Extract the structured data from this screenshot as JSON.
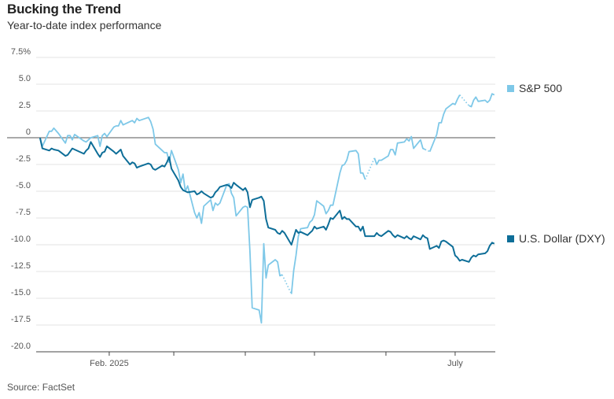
{
  "title": "Bucking the Trend",
  "subtitle": "Year-to-date index performance",
  "source": "Source: FactSet",
  "chart_data": {
    "type": "line",
    "ylim": [
      -20,
      7.5
    ],
    "y_ticks": [
      "7.5%",
      "5.0",
      "2.5",
      "0",
      "-2.5",
      "-5.0",
      "-7.5",
      "-10.0",
      "-12.5",
      "-15.0",
      "-17.5",
      "-20.0"
    ],
    "y_tick_values": [
      7.5,
      5,
      2.5,
      0,
      -2.5,
      -5,
      -7.5,
      -10,
      -12.5,
      -15,
      -17.5,
      -20
    ],
    "x_range": [
      "2025-01-01",
      "2025-07-15"
    ],
    "x_labels": [
      {
        "date": "2025-02-01",
        "label": "Feb. 2025"
      },
      {
        "date": "2025-07-01",
        "label": "July"
      }
    ],
    "x_ticks": [
      "2025-02-01",
      "2025-03-01",
      "2025-04-01",
      "2025-05-01",
      "2025-06-01",
      "2025-07-01"
    ],
    "grid": true,
    "series": [
      {
        "name": "S&P 500",
        "color": "#7ec8e8",
        "points": [
          [
            "2025-01-02",
            0.0
          ],
          [
            "2025-01-03",
            -0.8
          ],
          [
            "2025-01-06",
            0.6
          ],
          [
            "2025-01-07",
            0.6
          ],
          [
            "2025-01-08",
            0.9
          ],
          [
            "2025-01-10",
            0.4
          ],
          [
            "2025-01-13",
            -0.5
          ],
          [
            "2025-01-14",
            0.2
          ],
          [
            "2025-01-15",
            0.2
          ],
          [
            "2025-01-16",
            -0.2
          ],
          [
            "2025-01-17",
            0.3
          ],
          [
            "2025-01-21",
            -0.3
          ],
          [
            "2025-01-22",
            -0.4
          ],
          [
            "2025-01-23",
            -0.2
          ],
          [
            "2025-01-24",
            0.0
          ],
          [
            "2025-01-27",
            0.2
          ],
          [
            "2025-01-28",
            -0.8
          ],
          [
            "2025-01-29",
            0.2
          ],
          [
            "2025-01-30",
            0.4
          ],
          [
            "2025-01-31",
            0.1
          ],
          [
            "2025-02-03",
            1.0
          ],
          [
            "2025-02-04",
            1.1
          ],
          [
            "2025-02-05",
            1.1
          ],
          [
            "2025-02-06",
            1.6
          ],
          [
            "2025-02-07",
            1.2
          ],
          [
            "2025-02-10",
            1.5
          ],
          [
            "2025-02-11",
            1.6
          ],
          [
            "2025-02-12",
            1.4
          ],
          [
            "2025-02-13",
            1.8
          ],
          [
            "2025-02-14",
            1.6
          ],
          [
            "2025-02-18",
            1.9
          ],
          [
            "2025-02-19",
            1.5
          ],
          [
            "2025-02-20",
            0.8
          ],
          [
            "2025-02-21",
            -0.6
          ],
          [
            "2025-02-24",
            -1.2
          ],
          [
            "2025-02-25",
            -1.4
          ],
          [
            "2025-02-26",
            -1.4
          ],
          [
            "2025-02-27",
            -2.3
          ],
          [
            "2025-02-28",
            -1.2
          ],
          [
            "2025-03-03",
            -3.0
          ],
          [
            "2025-03-04",
            -4.2
          ],
          [
            "2025-03-05",
            -3.4
          ],
          [
            "2025-03-06",
            -5.0
          ],
          [
            "2025-03-07",
            -4.5
          ],
          [
            "2025-03-10",
            -7.0
          ],
          [
            "2025-03-11",
            -7.5
          ],
          [
            "2025-03-12",
            -7.0
          ],
          [
            "2025-03-13",
            -8.0
          ],
          [
            "2025-03-14",
            -6.4
          ],
          [
            "2025-03-17",
            -5.8
          ],
          [
            "2025-03-18",
            -6.8
          ],
          [
            "2025-03-19",
            -6.1
          ],
          [
            "2025-03-20",
            -6.3
          ],
          [
            "2025-03-21",
            -6.1
          ],
          [
            "2025-03-24",
            -4.4
          ],
          [
            "2025-03-25",
            -4.3
          ],
          [
            "2025-03-26",
            -5.2
          ],
          [
            "2025-03-27",
            -5.6
          ],
          [
            "2025-03-28",
            -7.3
          ],
          [
            "2025-03-31",
            -6.5
          ],
          [
            "2025-04-01",
            -6.4
          ],
          [
            "2025-04-02",
            -6.5
          ],
          [
            "2025-04-03",
            -10.6
          ],
          [
            "2025-04-04",
            -15.9
          ],
          [
            "2025-04-07",
            -16.1
          ],
          [
            "2025-04-08",
            -17.3
          ],
          [
            "2025-04-09",
            -9.9
          ],
          [
            "2025-04-10",
            -13.1
          ],
          [
            "2025-04-11",
            -11.9
          ],
          [
            "2025-04-14",
            -11.4
          ],
          [
            "2025-04-15",
            -11.6
          ],
          [
            "2025-04-16",
            -12.9
          ],
          [
            "2025-04-17",
            -12.8
          ],
          [
            "2025-04-18",
            null
          ],
          [
            "2025-04-21",
            -14.6
          ],
          [
            "2025-04-22",
            -12.4
          ],
          [
            "2025-04-23",
            -11.0
          ],
          [
            "2025-04-24",
            -9.2
          ],
          [
            "2025-04-25",
            -8.5
          ],
          [
            "2025-04-28",
            -8.4
          ],
          [
            "2025-04-29",
            -7.9
          ],
          [
            "2025-04-30",
            -7.7
          ],
          [
            "2025-05-01",
            -7.2
          ],
          [
            "2025-05-02",
            -5.9
          ],
          [
            "2025-05-05",
            -6.4
          ],
          [
            "2025-05-06",
            -7.1
          ],
          [
            "2025-05-07",
            -6.8
          ],
          [
            "2025-05-08",
            -6.3
          ],
          [
            "2025-05-09",
            -6.3
          ],
          [
            "2025-05-12",
            -3.3
          ],
          [
            "2025-05-13",
            -2.6
          ],
          [
            "2025-05-14",
            -2.5
          ],
          [
            "2025-05-15",
            -2.1
          ],
          [
            "2025-05-16",
            -1.3
          ],
          [
            "2025-05-19",
            -1.2
          ],
          [
            "2025-05-20",
            -1.5
          ],
          [
            "2025-05-21",
            -3.3
          ],
          [
            "2025-05-22",
            -3.3
          ],
          [
            "2025-05-23",
            -3.9
          ],
          [
            "2025-05-26",
            null
          ],
          [
            "2025-05-27",
            -1.9
          ],
          [
            "2025-05-28",
            -2.5
          ],
          [
            "2025-05-29",
            -2.1
          ],
          [
            "2025-05-30",
            -2.1
          ],
          [
            "2025-06-02",
            -1.7
          ],
          [
            "2025-06-03",
            -1.1
          ],
          [
            "2025-06-04",
            -1.1
          ],
          [
            "2025-06-05",
            -1.6
          ],
          [
            "2025-06-06",
            -0.5
          ],
          [
            "2025-06-09",
            -0.4
          ],
          [
            "2025-06-10",
            -0.1
          ],
          [
            "2025-06-11",
            -0.3
          ],
          [
            "2025-06-12",
            0.1
          ],
          [
            "2025-06-13",
            -1.0
          ],
          [
            "2025-06-16",
            -0.2
          ],
          [
            "2025-06-17",
            -1.0
          ],
          [
            "2025-06-18",
            -1.1
          ],
          [
            "2025-06-19",
            null
          ],
          [
            "2025-06-20",
            -1.3
          ],
          [
            "2025-06-23",
            0.3
          ],
          [
            "2025-06-24",
            1.4
          ],
          [
            "2025-06-25",
            1.4
          ],
          [
            "2025-06-26",
            2.2
          ],
          [
            "2025-06-27",
            2.7
          ],
          [
            "2025-06-30",
            3.2
          ],
          [
            "2025-07-01",
            3.1
          ],
          [
            "2025-07-02",
            3.6
          ],
          [
            "2025-07-03",
            4.0
          ],
          [
            "2025-07-04",
            null
          ],
          [
            "2025-07-07",
            3.0
          ],
          [
            "2025-07-08",
            2.9
          ],
          [
            "2025-07-09",
            3.5
          ],
          [
            "2025-07-10",
            3.8
          ],
          [
            "2025-07-11",
            3.4
          ],
          [
            "2025-07-14",
            3.5
          ],
          [
            "2025-07-15",
            3.3
          ],
          [
            "2025-07-16",
            3.5
          ],
          [
            "2025-07-17",
            4.1
          ],
          [
            "2025-07-18",
            4.0
          ]
        ]
      },
      {
        "name": "U.S. Dollar (DXY)",
        "color": "#0e6e98",
        "points": [
          [
            "2025-01-02",
            0.0
          ],
          [
            "2025-01-03",
            -1.0
          ],
          [
            "2025-01-06",
            -1.2
          ],
          [
            "2025-01-07",
            -1.0
          ],
          [
            "2025-01-08",
            -1.1
          ],
          [
            "2025-01-10",
            -1.2
          ],
          [
            "2025-01-13",
            -1.7
          ],
          [
            "2025-01-14",
            -1.6
          ],
          [
            "2025-01-15",
            -1.3
          ],
          [
            "2025-01-16",
            -1.0
          ],
          [
            "2025-01-17",
            -1.1
          ],
          [
            "2025-01-21",
            -1.5
          ],
          [
            "2025-01-22",
            -1.2
          ],
          [
            "2025-01-23",
            -1.0
          ],
          [
            "2025-01-24",
            -0.4
          ],
          [
            "2025-01-27",
            -1.5
          ],
          [
            "2025-01-28",
            -1.8
          ],
          [
            "2025-01-29",
            -1.4
          ],
          [
            "2025-01-30",
            -1.3
          ],
          [
            "2025-01-31",
            -0.8
          ],
          [
            "2025-02-03",
            -1.3
          ],
          [
            "2025-02-04",
            -1.5
          ],
          [
            "2025-02-05",
            -1.3
          ],
          [
            "2025-02-06",
            -1.1
          ],
          [
            "2025-02-07",
            -1.7
          ],
          [
            "2025-02-10",
            -2.5
          ],
          [
            "2025-02-11",
            -2.3
          ],
          [
            "2025-02-12",
            -2.4
          ],
          [
            "2025-02-13",
            -2.8
          ],
          [
            "2025-02-14",
            -2.7
          ],
          [
            "2025-02-18",
            -2.4
          ],
          [
            "2025-02-19",
            -2.5
          ],
          [
            "2025-02-20",
            -2.9
          ],
          [
            "2025-02-21",
            -3.0
          ],
          [
            "2025-02-24",
            -2.6
          ],
          [
            "2025-02-25",
            -2.7
          ],
          [
            "2025-02-26",
            -2.3
          ],
          [
            "2025-02-27",
            -1.8
          ],
          [
            "2025-02-28",
            -2.9
          ],
          [
            "2025-03-03",
            -4.0
          ],
          [
            "2025-03-04",
            -4.6
          ],
          [
            "2025-03-05",
            -4.9
          ],
          [
            "2025-03-06",
            -5.0
          ],
          [
            "2025-03-07",
            -5.1
          ],
          [
            "2025-03-10",
            -5.0
          ],
          [
            "2025-03-11",
            -5.3
          ],
          [
            "2025-03-12",
            -5.2
          ],
          [
            "2025-03-13",
            -5.0
          ],
          [
            "2025-03-14",
            -5.2
          ],
          [
            "2025-03-17",
            -5.6
          ],
          [
            "2025-03-18",
            -5.5
          ],
          [
            "2025-03-19",
            -5.1
          ],
          [
            "2025-03-20",
            -4.9
          ],
          [
            "2025-03-21",
            -4.6
          ],
          [
            "2025-03-24",
            -4.4
          ],
          [
            "2025-03-25",
            -4.5
          ],
          [
            "2025-03-26",
            -4.7
          ],
          [
            "2025-03-27",
            -4.2
          ],
          [
            "2025-03-28",
            -4.4
          ],
          [
            "2025-03-31",
            -4.9
          ],
          [
            "2025-04-01",
            -4.7
          ],
          [
            "2025-04-02",
            -5.1
          ],
          [
            "2025-04-03",
            -6.5
          ],
          [
            "2025-04-04",
            -5.8
          ],
          [
            "2025-04-07",
            -5.6
          ],
          [
            "2025-04-08",
            -5.5
          ],
          [
            "2025-04-09",
            -5.9
          ],
          [
            "2025-04-10",
            -7.6
          ],
          [
            "2025-04-11",
            -8.4
          ],
          [
            "2025-04-14",
            -8.6
          ],
          [
            "2025-04-15",
            -8.9
          ],
          [
            "2025-04-16",
            -9.0
          ],
          [
            "2025-04-17",
            -8.7
          ],
          [
            "2025-04-18",
            -8.9
          ],
          [
            "2025-04-21",
            -10.0
          ],
          [
            "2025-04-22",
            -9.3
          ],
          [
            "2025-04-23",
            -8.6
          ],
          [
            "2025-04-24",
            -8.9
          ],
          [
            "2025-04-25",
            -8.8
          ],
          [
            "2025-04-28",
            -9.1
          ],
          [
            "2025-04-29",
            -8.9
          ],
          [
            "2025-04-30",
            -8.7
          ],
          [
            "2025-05-01",
            -8.3
          ],
          [
            "2025-05-02",
            -8.5
          ],
          [
            "2025-05-05",
            -8.3
          ],
          [
            "2025-05-06",
            -8.6
          ],
          [
            "2025-05-07",
            -8.1
          ],
          [
            "2025-05-08",
            -7.5
          ],
          [
            "2025-05-09",
            -7.6
          ],
          [
            "2025-05-12",
            -6.8
          ],
          [
            "2025-05-13",
            -7.6
          ],
          [
            "2025-05-14",
            -7.4
          ],
          [
            "2025-05-15",
            -7.6
          ],
          [
            "2025-05-16",
            -7.6
          ],
          [
            "2025-05-19",
            -8.3
          ],
          [
            "2025-05-20",
            -8.3
          ],
          [
            "2025-05-21",
            -8.7
          ],
          [
            "2025-05-22",
            -8.3
          ],
          [
            "2025-05-23",
            -9.2
          ],
          [
            "2025-05-27",
            -9.2
          ],
          [
            "2025-05-28",
            -8.9
          ],
          [
            "2025-05-29",
            -9.1
          ],
          [
            "2025-05-30",
            -9.2
          ],
          [
            "2025-06-02",
            -8.7
          ],
          [
            "2025-06-03",
            -8.8
          ],
          [
            "2025-06-04",
            -9.1
          ],
          [
            "2025-06-05",
            -9.3
          ],
          [
            "2025-06-06",
            -9.1
          ],
          [
            "2025-06-09",
            -9.4
          ],
          [
            "2025-06-10",
            -9.2
          ],
          [
            "2025-06-11",
            -9.4
          ],
          [
            "2025-06-12",
            -9.5
          ],
          [
            "2025-06-13",
            -9.2
          ],
          [
            "2025-06-16",
            -9.5
          ],
          [
            "2025-06-17",
            -9.1
          ],
          [
            "2025-06-18",
            -9.3
          ],
          [
            "2025-06-19",
            -9.4
          ],
          [
            "2025-06-20",
            -10.4
          ],
          [
            "2025-06-23",
            -10.1
          ],
          [
            "2025-06-24",
            -10.3
          ],
          [
            "2025-06-25",
            -9.7
          ],
          [
            "2025-06-26",
            -9.6
          ],
          [
            "2025-06-27",
            -9.7
          ],
          [
            "2025-06-30",
            -10.2
          ],
          [
            "2025-07-01",
            -11.0
          ],
          [
            "2025-07-02",
            -11.2
          ],
          [
            "2025-07-03",
            -11.5
          ],
          [
            "2025-07-04",
            -11.4
          ],
          [
            "2025-07-07",
            -11.6
          ],
          [
            "2025-07-08",
            -11.2
          ],
          [
            "2025-07-09",
            -11.0
          ],
          [
            "2025-07-10",
            -11.1
          ],
          [
            "2025-07-11",
            -10.9
          ],
          [
            "2025-07-14",
            -10.8
          ],
          [
            "2025-07-15",
            -10.6
          ],
          [
            "2025-07-16",
            -10.1
          ],
          [
            "2025-07-17",
            -9.8
          ],
          [
            "2025-07-18",
            -9.9
          ]
        ]
      }
    ]
  }
}
